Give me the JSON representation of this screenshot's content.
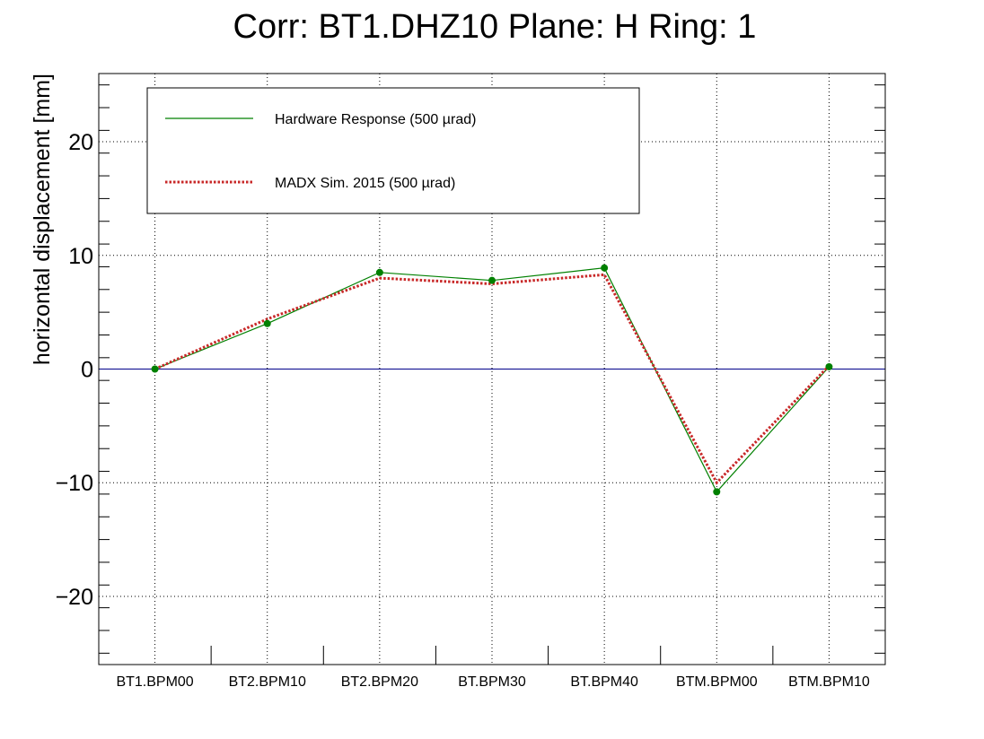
{
  "chart_data": {
    "type": "line",
    "title": "Corr: BT1.DHZ10 Plane: H Ring: 1",
    "xlabel": "",
    "ylabel": "horizontal displacement [mm]",
    "ylim": [
      -26,
      26
    ],
    "yticks": [
      -20,
      -10,
      0,
      10,
      20
    ],
    "ytick_labels": [
      "−20",
      "−10",
      "0",
      "10",
      "20"
    ],
    "grid": true,
    "legend_position": "top-left",
    "zero_line": 0,
    "categories": [
      "BT1.BPM00",
      "BT2.BPM10",
      "BT2.BPM20",
      "BT.BPM30",
      "BT.BPM40",
      "BTM.BPM00",
      "BTM.BPM10"
    ],
    "series": [
      {
        "name": "Hardware Response (500 µrad)",
        "values": [
          0.0,
          4.0,
          8.5,
          7.8,
          8.9,
          -10.8,
          0.2
        ],
        "color": "#008000",
        "style": "solid",
        "markers": true
      },
      {
        "name": "MADX Sim. 2015 (500 µrad)",
        "values": [
          0.0,
          4.4,
          8.0,
          7.5,
          8.3,
          -10.0,
          0.3
        ],
        "color": "#c82828",
        "style": "dotted",
        "markers": false
      }
    ],
    "colors": {
      "zero_line": "#00008b",
      "axis": "#000000"
    }
  }
}
